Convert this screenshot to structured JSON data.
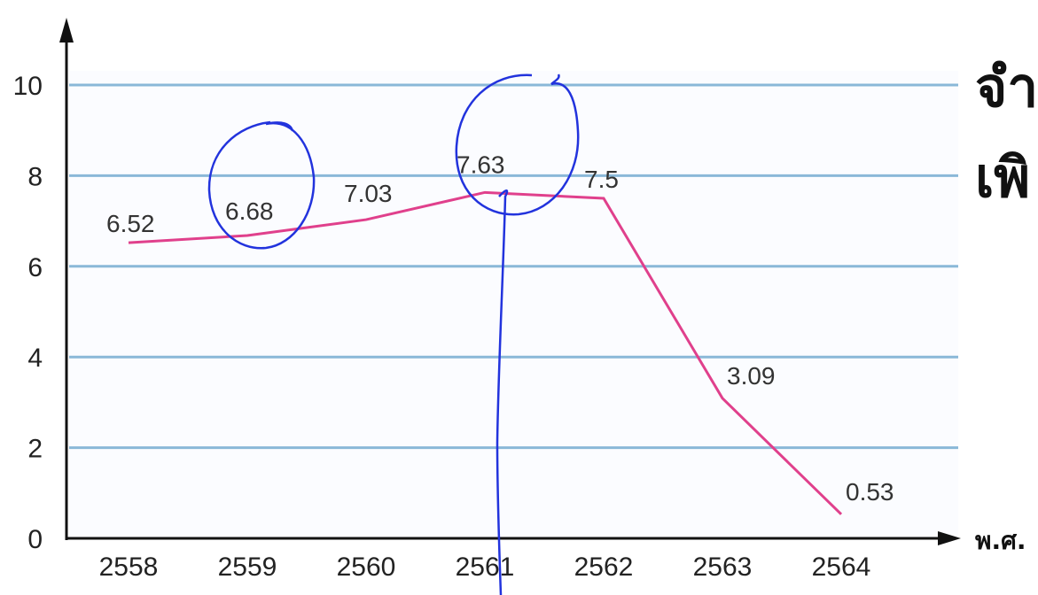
{
  "chart_data": {
    "type": "line",
    "x": [
      "2558",
      "2559",
      "2560",
      "2561",
      "2562",
      "2563",
      "2564"
    ],
    "series": [
      {
        "values": [
          6.52,
          6.68,
          7.03,
          7.63,
          7.5,
          3.09,
          0.53
        ],
        "color": "#e0408c"
      }
    ],
    "data_labels": [
      "6.52",
      "6.68",
      "7.03",
      "7.63",
      "7.5",
      "3.09",
      "0.53"
    ],
    "y_ticks": [
      "0",
      "2",
      "4",
      "6",
      "8",
      "10"
    ],
    "ylim": [
      0,
      11
    ],
    "grid": true,
    "grid_color": "#8ab8d8",
    "xlabel": "พ.ศ.",
    "side_text": [
      "จำ",
      "เพิ"
    ],
    "annotation_color": "#2233dd"
  }
}
